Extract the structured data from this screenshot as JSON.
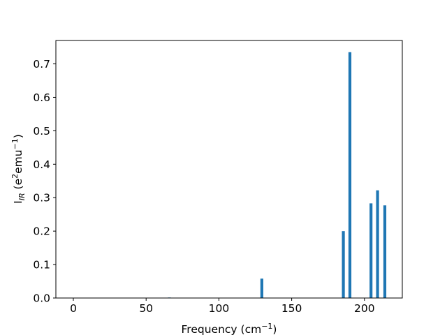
{
  "chart_data": {
    "type": "bar",
    "x": [
      0,
      66,
      129.5,
      185.5,
      190,
      204.5,
      209,
      214
    ],
    "values": [
      0.0004,
      0.0015,
      0.058,
      0.2,
      0.735,
      0.283,
      0.322,
      0.277
    ],
    "bar_width": 2,
    "xlim": [
      -12,
      226
    ],
    "ylim": [
      0,
      0.77
    ],
    "xticks": [
      0,
      50,
      100,
      150,
      200
    ],
    "yticks": [
      0.0,
      0.1,
      0.2,
      0.3,
      0.4,
      0.5,
      0.6,
      0.7
    ],
    "xlabel": {
      "main": "Frequency (cm",
      "sup": "−1",
      "tail": ")"
    },
    "ylabel": {
      "main": "I",
      "sub": "IR",
      "mid": " (e",
      "sup1": "2",
      "mid2": "emu",
      "sup2": "−1",
      "tail": ")"
    },
    "title": "",
    "grid": false,
    "legend": "none",
    "bar_color": "#1f77b4"
  }
}
